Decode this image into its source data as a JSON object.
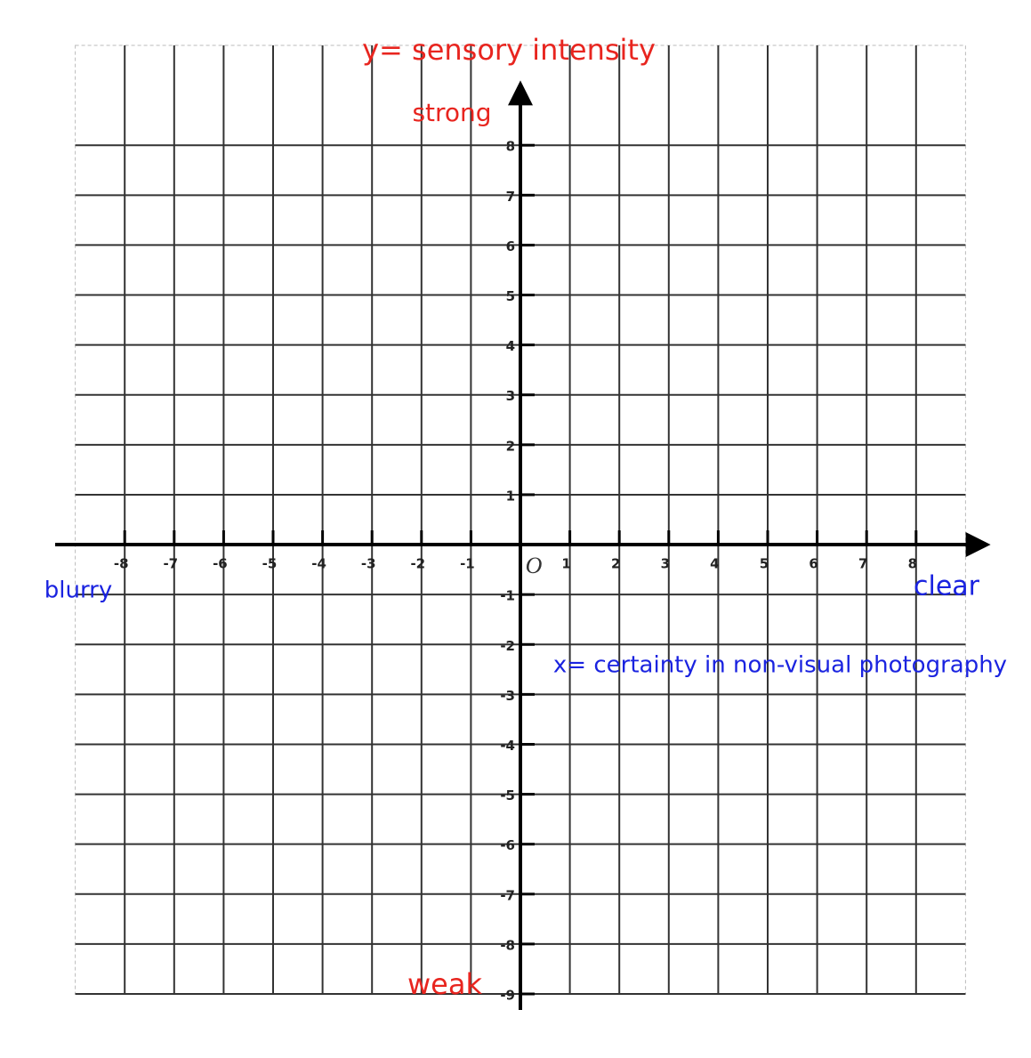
{
  "chart_data": {
    "type": "axes",
    "title": "y= sensory intensity",
    "x_label": "x= certainty in non-visual photography",
    "origin_label": "O",
    "annotations": {
      "top": "strong",
      "bottom": "weak",
      "left": "blurry",
      "right": "clear"
    },
    "xlim": [
      -9,
      9
    ],
    "ylim": [
      -9,
      10
    ],
    "xticks": [
      -8,
      -7,
      -6,
      -5,
      -4,
      -3,
      -2,
      -1,
      1,
      2,
      3,
      4,
      5,
      6,
      7,
      8
    ],
    "yticks": [
      8,
      7,
      6,
      5,
      4,
      3,
      2,
      1,
      -1,
      -2,
      -3,
      -4,
      -5,
      -6,
      -7,
      -8,
      -9
    ],
    "grid": true
  }
}
